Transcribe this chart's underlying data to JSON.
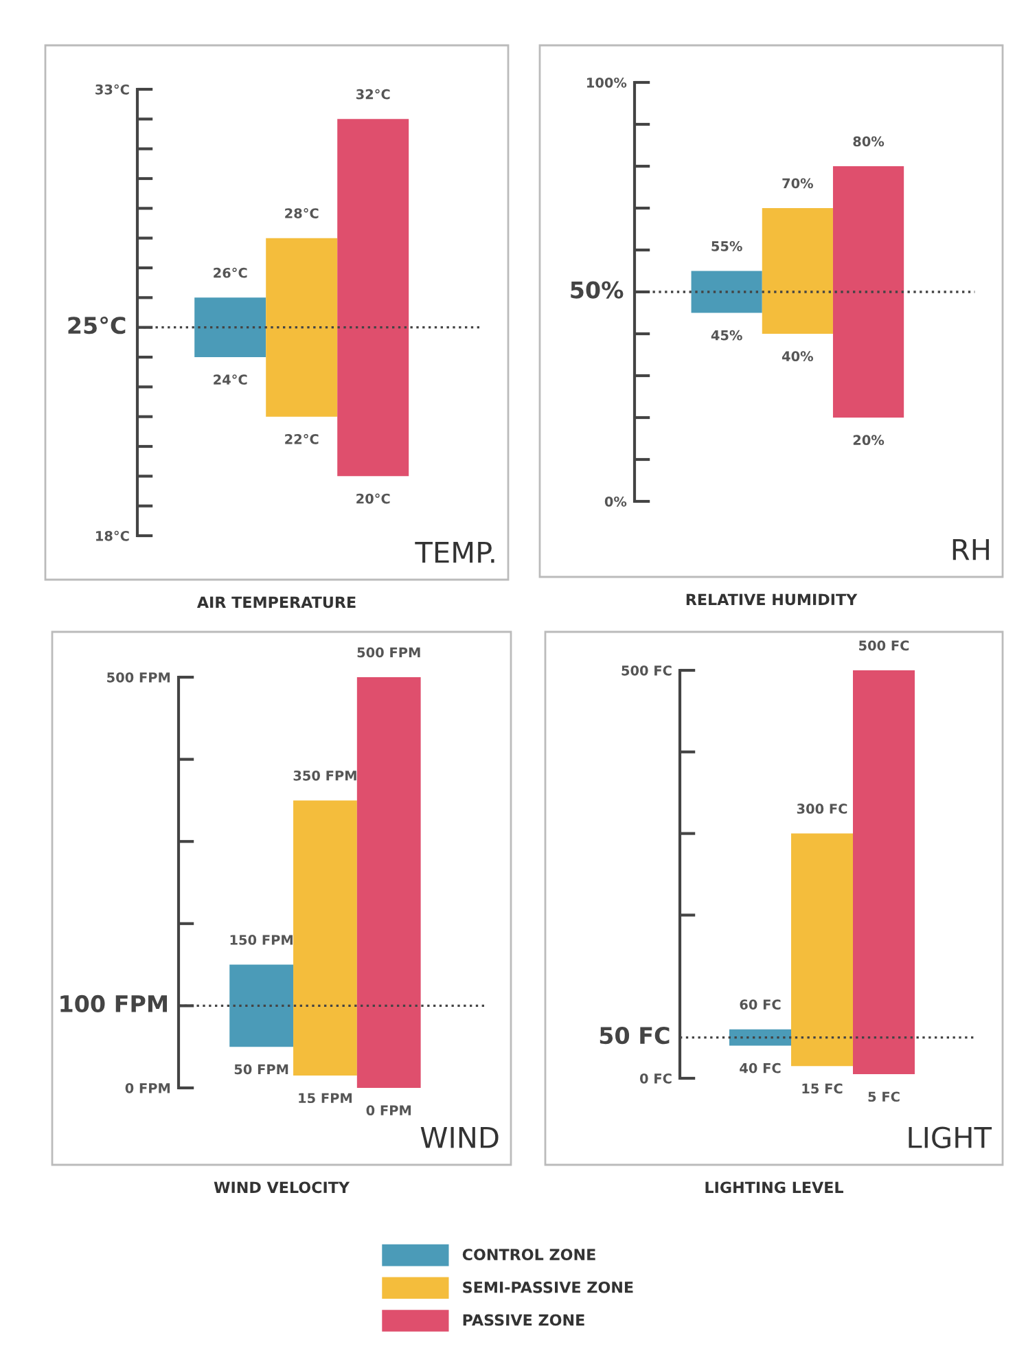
{
  "chart_data": [
    {
      "type": "bar",
      "title": "AIR TEMPERATURE",
      "categories": [
        null,
        null,
        null
      ],
      "series": [
        {
          "name": "CONTROL ZONE",
          "color": "#4b9bb8",
          "values": [
            2,
            null,
            null
          ],
          "base": [
            24,
            null,
            null
          ]
        },
        {
          "name": "SEMI-PASSIVE ZONE",
          "color": "#f4bd3c",
          "values": [
            null,
            6,
            null
          ],
          "base": [
            null,
            22,
            null
          ]
        },
        {
          "name": "PASSIVE ZONE",
          "color": "#df4f6d",
          "values": [
            null,
            null,
            12
          ],
          "base": [
            null,
            null,
            20
          ]
        }
      ],
      "ylim": [
        18,
        33
      ],
      "yticks": [
        {
          "value": 18,
          "label": "18°C"
        },
        {
          "value": 19,
          "label": null
        },
        {
          "value": 20,
          "label": null
        },
        {
          "value": 21,
          "label": null
        },
        {
          "value": 22,
          "label": null
        },
        {
          "value": 23,
          "label": null
        },
        {
          "value": 24,
          "label": null
        },
        {
          "value": 25,
          "label": null
        },
        {
          "value": 26,
          "label": null
        },
        {
          "value": 27,
          "label": null
        },
        {
          "value": 28,
          "label": null
        },
        {
          "value": 29,
          "label": null
        },
        {
          "value": 30,
          "label": null
        },
        {
          "value": 31,
          "label": null
        },
        {
          "value": 32,
          "label": null
        },
        {
          "value": 33,
          "label": "33°C"
        }
      ],
      "ref_lines": [
        {
          "axis": "y",
          "value": 25,
          "label": "25°C",
          "line_style": "dotted"
        }
      ],
      "annotations": [
        {
          "text": "26°C",
          "y": 26
        },
        {
          "text": "24°C",
          "y": 24
        },
        {
          "text": "28°C",
          "y": 28
        },
        {
          "text": "22°C",
          "y": 22
        },
        {
          "text": "32°C",
          "y": 32
        },
        {
          "text": "20°C",
          "y": 20
        },
        "TEMP."
      ],
      "legend": "bottom"
    },
    {
      "type": "bar",
      "title": "RELATIVE HUMIDITY",
      "categories": [
        null,
        null,
        null
      ],
      "series": [
        {
          "color": "#4b9bb8",
          "values": [
            10,
            null,
            null
          ],
          "base": [
            45,
            null,
            null
          ]
        },
        {
          "color": "#f4bd3c",
          "values": [
            null,
            30,
            null
          ],
          "base": [
            null,
            40,
            null
          ]
        },
        {
          "color": "#df4f6d",
          "values": [
            null,
            null,
            60
          ],
          "base": [
            null,
            null,
            20
          ]
        }
      ],
      "ylim": [
        0,
        100
      ],
      "yticks": [
        {
          "value": 0,
          "label": "0%"
        },
        {
          "value": 10,
          "label": null
        },
        {
          "value": 20,
          "label": null
        },
        {
          "value": 30,
          "label": null
        },
        {
          "value": 40,
          "label": null
        },
        {
          "value": 50,
          "label": null
        },
        {
          "value": 60,
          "label": null
        },
        {
          "value": 70,
          "label": null
        },
        {
          "value": 80,
          "label": null
        },
        {
          "value": 90,
          "label": null
        },
        {
          "value": 100,
          "label": "100%"
        }
      ],
      "ref_lines": [
        {
          "axis": "y",
          "value": 50,
          "label": "50%",
          "line_style": "dotted"
        }
      ],
      "annotations": [
        {
          "text": "55%",
          "y": 55
        },
        {
          "text": "45%",
          "y": 45
        },
        {
          "text": "70%",
          "y": 70
        },
        {
          "text": "40%",
          "y": 40
        },
        {
          "text": "80%",
          "y": 80
        },
        {
          "text": "20%",
          "y": 20
        },
        "RH"
      ]
    },
    {
      "type": "bar",
      "title": "WIND VELOCITY",
      "categories": [
        null,
        null,
        null
      ],
      "series": [
        {
          "color": "#4b9bb8",
          "values": [
            100,
            null,
            null
          ],
          "base": [
            50,
            null,
            null
          ]
        },
        {
          "color": "#f4bd3c",
          "values": [
            null,
            335,
            null
          ],
          "base": [
            null,
            15,
            null
          ]
        },
        {
          "color": "#df4f6d",
          "values": [
            null,
            null,
            500
          ],
          "base": [
            null,
            null,
            0
          ]
        }
      ],
      "ylim": [
        0,
        500
      ],
      "yticks": [
        {
          "value": 0,
          "label": "0 FPM"
        },
        {
          "value": 100,
          "label": null
        },
        {
          "value": 200,
          "label": null
        },
        {
          "value": 300,
          "label": null
        },
        {
          "value": 400,
          "label": null
        },
        {
          "value": 500,
          "label": "500 FPM"
        }
      ],
      "ref_lines": [
        {
          "axis": "y",
          "value": 100,
          "label": "100 FPM",
          "line_style": "dotted"
        }
      ],
      "annotations": [
        {
          "text": "150 FPM",
          "y": 150
        },
        {
          "text": "50 FPM",
          "y": 50
        },
        {
          "text": "350 FPM",
          "y": 350
        },
        {
          "text": "15 FPM",
          "y": 15
        },
        {
          "text": "500 FPM",
          "y": 500
        },
        {
          "text": "0 FPM",
          "y": 0
        },
        "WIND"
      ]
    },
    {
      "type": "bar",
      "title": "LIGHTING LEVEL",
      "categories": [
        null,
        null,
        null
      ],
      "series": [
        {
          "color": "#4b9bb8",
          "values": [
            20,
            null,
            null
          ],
          "base": [
            40,
            null,
            null
          ]
        },
        {
          "color": "#f4bd3c",
          "values": [
            null,
            285,
            null
          ],
          "base": [
            null,
            15,
            null
          ]
        },
        {
          "color": "#df4f6d",
          "values": [
            null,
            null,
            495
          ],
          "base": [
            null,
            null,
            5
          ]
        }
      ],
      "ylim": [
        0,
        500
      ],
      "yticks": [
        {
          "value": 0,
          "label": "0 FC"
        },
        {
          "value": 200,
          "label": null
        },
        {
          "value": 300,
          "label": null
        },
        {
          "value": 400,
          "label": null
        },
        {
          "value": 500,
          "label": "500 FC"
        }
      ],
      "ref_lines": [
        {
          "axis": "y",
          "value": 50,
          "label": "50 FC",
          "line_style": "dotted"
        }
      ],
      "annotations": [
        {
          "text": "60 FC",
          "y": 60
        },
        {
          "text": "40 FC",
          "y": 40
        },
        {
          "text": "300 FC",
          "y": 300
        },
        {
          "text": "15 FC",
          "y": 15
        },
        {
          "text": "500 FC",
          "y": 500
        },
        {
          "text": "5 FC",
          "y": 5
        },
        "LIGHT"
      ]
    }
  ]
}
